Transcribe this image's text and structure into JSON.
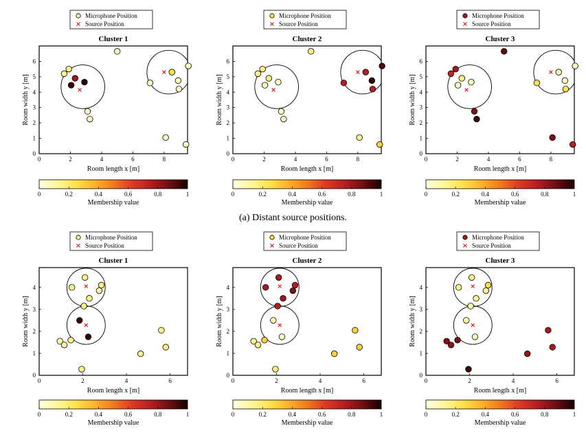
{
  "caption": "(a) Distant source positions.",
  "colors": {
    "source_marker": "#d62020",
    "frame": "#000000",
    "circle": "#000000"
  },
  "colormap": [
    "#ffffe0",
    "#fff79a",
    "#ffe24a",
    "#fdb22b",
    "#f07a1e",
    "#df3a23",
    "#b51e22",
    "#6e0f12",
    "#1a0000"
  ],
  "legend": {
    "microphone": "Microphone Position",
    "source": "Source Position"
  },
  "colorbar": {
    "label": "Membership value",
    "ticks": [
      "0",
      "0.2",
      "0.4",
      "0.6",
      "0.8",
      "1"
    ]
  },
  "chart_data": [
    {
      "type": "scatter",
      "title": "Cluster 1",
      "xlabel": "Room length x [m]",
      "ylabel": "Room width y [m]",
      "xlim": [
        0,
        9.5
      ],
      "ylim": [
        0,
        7
      ],
      "xticks": [
        "0",
        "2",
        "4",
        "6",
        "8"
      ],
      "yticks": [
        "0",
        "1",
        "2",
        "3",
        "4",
        "5",
        "6"
      ],
      "legend_mic_color": "#fff5a0",
      "sources": [
        {
          "x": 2.6,
          "y": 4.15
        },
        {
          "x": 8.0,
          "y": 5.3
        }
      ],
      "circles": [
        {
          "x": 2.8,
          "y": 4.35,
          "r": 1.4
        },
        {
          "x": 8.3,
          "y": 5.3,
          "r": 1.4
        }
      ],
      "mics": [
        {
          "x": 1.6,
          "y": 5.2,
          "m": 0.15
        },
        {
          "x": 1.9,
          "y": 5.5,
          "m": 0.15
        },
        {
          "x": 2.3,
          "y": 4.9,
          "m": 0.8
        },
        {
          "x": 2.05,
          "y": 4.45,
          "m": 0.95
        },
        {
          "x": 2.9,
          "y": 4.65,
          "m": 0.98
        },
        {
          "x": 3.1,
          "y": 2.75,
          "m": 0.05
        },
        {
          "x": 3.25,
          "y": 2.25,
          "m": 0.05
        },
        {
          "x": 5.0,
          "y": 6.65,
          "m": 0.05
        },
        {
          "x": 7.1,
          "y": 4.6,
          "m": 0.05
        },
        {
          "x": 8.5,
          "y": 5.3,
          "m": 0.25
        },
        {
          "x": 8.9,
          "y": 4.75,
          "m": 0.05
        },
        {
          "x": 8.95,
          "y": 4.2,
          "m": 0.05
        },
        {
          "x": 9.55,
          "y": 5.7,
          "m": 0.05
        },
        {
          "x": 8.1,
          "y": 1.05,
          "m": 0.05
        },
        {
          "x": 9.4,
          "y": 0.6,
          "m": 0.05
        }
      ]
    },
    {
      "type": "scatter",
      "title": "Cluster 2",
      "xlabel": "Room length x [m]",
      "ylabel": "Room width y [m]",
      "xlim": [
        0,
        9.5
      ],
      "ylim": [
        0,
        7
      ],
      "xticks": [
        "0",
        "2",
        "4",
        "6",
        "8"
      ],
      "yticks": [
        "0",
        "1",
        "2",
        "3",
        "4",
        "5",
        "6"
      ],
      "legend_mic_color": "#fde04a",
      "sources": [
        {
          "x": 2.6,
          "y": 4.15
        },
        {
          "x": 8.0,
          "y": 5.3
        }
      ],
      "circles": [
        {
          "x": 2.8,
          "y": 4.35,
          "r": 1.4
        },
        {
          "x": 8.3,
          "y": 5.3,
          "r": 1.4
        }
      ],
      "mics": [
        {
          "x": 1.6,
          "y": 5.2,
          "m": 0.15
        },
        {
          "x": 1.9,
          "y": 5.5,
          "m": 0.15
        },
        {
          "x": 2.3,
          "y": 4.9,
          "m": 0.15
        },
        {
          "x": 2.05,
          "y": 4.45,
          "m": 0.05
        },
        {
          "x": 2.9,
          "y": 4.65,
          "m": 0.05
        },
        {
          "x": 3.1,
          "y": 2.75,
          "m": 0.05
        },
        {
          "x": 3.25,
          "y": 2.25,
          "m": 0.05
        },
        {
          "x": 5.0,
          "y": 6.65,
          "m": 0.15
        },
        {
          "x": 7.1,
          "y": 4.6,
          "m": 0.75
        },
        {
          "x": 8.5,
          "y": 5.3,
          "m": 0.75
        },
        {
          "x": 8.9,
          "y": 4.75,
          "m": 0.97
        },
        {
          "x": 8.95,
          "y": 4.2,
          "m": 0.75
        },
        {
          "x": 9.55,
          "y": 5.7,
          "m": 0.93
        },
        {
          "x": 8.1,
          "y": 1.05,
          "m": 0.15
        },
        {
          "x": 9.4,
          "y": 0.6,
          "m": 0.3
        }
      ]
    },
    {
      "type": "scatter",
      "title": "Cluster 3",
      "xlabel": "Room length x [m]",
      "ylabel": "Room width y [m]",
      "xlim": [
        0,
        9.5
      ],
      "ylim": [
        0,
        7
      ],
      "xticks": [
        "0",
        "2",
        "4",
        "6",
        "8"
      ],
      "yticks": [
        "0",
        "1",
        "2",
        "3",
        "4",
        "5",
        "6"
      ],
      "legend_mic_color": "#9c1c1c",
      "sources": [
        {
          "x": 2.6,
          "y": 4.15
        },
        {
          "x": 8.0,
          "y": 5.3
        }
      ],
      "circles": [
        {
          "x": 2.8,
          "y": 4.35,
          "r": 1.4
        },
        {
          "x": 8.3,
          "y": 5.3,
          "r": 1.4
        }
      ],
      "mics": [
        {
          "x": 1.6,
          "y": 5.2,
          "m": 0.72
        },
        {
          "x": 1.9,
          "y": 5.5,
          "m": 0.78
        },
        {
          "x": 2.3,
          "y": 4.9,
          "m": 0.15
        },
        {
          "x": 2.05,
          "y": 4.45,
          "m": 0.05
        },
        {
          "x": 2.9,
          "y": 4.65,
          "m": 0.05
        },
        {
          "x": 3.1,
          "y": 2.75,
          "m": 0.85
        },
        {
          "x": 3.25,
          "y": 2.25,
          "m": 0.95
        },
        {
          "x": 5.0,
          "y": 6.65,
          "m": 0.9
        },
        {
          "x": 7.1,
          "y": 4.6,
          "m": 0.25
        },
        {
          "x": 8.5,
          "y": 5.3,
          "m": 0.1
        },
        {
          "x": 8.9,
          "y": 4.75,
          "m": 0.05
        },
        {
          "x": 8.95,
          "y": 4.2,
          "m": 0.25
        },
        {
          "x": 9.55,
          "y": 5.7,
          "m": 0.05
        },
        {
          "x": 8.1,
          "y": 1.05,
          "m": 0.85
        },
        {
          "x": 9.4,
          "y": 0.6,
          "m": 0.75
        }
      ]
    },
    {
      "type": "scatter",
      "title": "Cluster 1",
      "xlabel": "Room length x [m]",
      "ylabel": "Room width y [m]",
      "xlim": [
        0,
        6.8
      ],
      "ylim": [
        0,
        4.9
      ],
      "xticks": [
        "0",
        "2",
        "4",
        "6"
      ],
      "yticks": [
        "0",
        "1",
        "2",
        "3",
        "4"
      ],
      "legend_mic_color": "#fff5a0",
      "sources": [
        {
          "x": 2.15,
          "y": 4.05
        },
        {
          "x": 2.15,
          "y": 2.28
        }
      ],
      "circles": [
        {
          "x": 2.15,
          "y": 4.0,
          "r": 0.88
        },
        {
          "x": 2.15,
          "y": 2.28,
          "r": 0.88
        }
      ],
      "mics": [
        {
          "x": 1.5,
          "y": 4.0,
          "m": 0.15
        },
        {
          "x": 2.1,
          "y": 4.45,
          "m": 0.15
        },
        {
          "x": 2.85,
          "y": 4.1,
          "m": 0.15
        },
        {
          "x": 2.75,
          "y": 3.85,
          "m": 0.1
        },
        {
          "x": 2.3,
          "y": 3.5,
          "m": 0.15
        },
        {
          "x": 2.05,
          "y": 3.15,
          "m": 0.15
        },
        {
          "x": 1.85,
          "y": 2.5,
          "m": 0.95
        },
        {
          "x": 2.25,
          "y": 1.75,
          "m": 0.97
        },
        {
          "x": 1.45,
          "y": 1.6,
          "m": 0.15
        },
        {
          "x": 0.95,
          "y": 1.55,
          "m": 0.1
        },
        {
          "x": 1.15,
          "y": 1.38,
          "m": 0.1
        },
        {
          "x": 1.95,
          "y": 0.28,
          "m": 0.15
        },
        {
          "x": 4.65,
          "y": 0.98,
          "m": 0.15
        },
        {
          "x": 5.6,
          "y": 2.05,
          "m": 0.15
        },
        {
          "x": 5.8,
          "y": 1.28,
          "m": 0.15
        }
      ]
    },
    {
      "type": "scatter",
      "title": "Cluster 2",
      "xlabel": "Room length x [m]",
      "ylabel": "Room width y [m]",
      "xlim": [
        0,
        6.8
      ],
      "ylim": [
        0,
        4.9
      ],
      "xticks": [
        "0",
        "2",
        "4",
        "6"
      ],
      "yticks": [
        "0",
        "1",
        "2",
        "3",
        "4"
      ],
      "legend_mic_color": "#fde04a",
      "sources": [
        {
          "x": 2.15,
          "y": 4.05
        },
        {
          "x": 2.15,
          "y": 2.28
        }
      ],
      "circles": [
        {
          "x": 2.15,
          "y": 4.0,
          "r": 0.88
        },
        {
          "x": 2.15,
          "y": 2.28,
          "r": 0.88
        }
      ],
      "mics": [
        {
          "x": 1.5,
          "y": 4.0,
          "m": 0.78
        },
        {
          "x": 2.1,
          "y": 4.45,
          "m": 0.78
        },
        {
          "x": 2.85,
          "y": 4.1,
          "m": 0.75
        },
        {
          "x": 2.75,
          "y": 3.85,
          "m": 0.85
        },
        {
          "x": 2.3,
          "y": 3.5,
          "m": 0.8
        },
        {
          "x": 2.05,
          "y": 3.15,
          "m": 0.75
        },
        {
          "x": 1.85,
          "y": 2.5,
          "m": 0.1
        },
        {
          "x": 2.25,
          "y": 1.75,
          "m": 0.05
        },
        {
          "x": 1.45,
          "y": 1.6,
          "m": 0.3
        },
        {
          "x": 0.95,
          "y": 1.55,
          "m": 0.15
        },
        {
          "x": 1.15,
          "y": 1.38,
          "m": 0.15
        },
        {
          "x": 1.95,
          "y": 0.28,
          "m": 0.15
        },
        {
          "x": 4.65,
          "y": 0.98,
          "m": 0.3
        },
        {
          "x": 5.6,
          "y": 2.05,
          "m": 0.3
        },
        {
          "x": 5.8,
          "y": 1.28,
          "m": 0.3
        }
      ]
    },
    {
      "type": "scatter",
      "title": "Cluster 3",
      "xlabel": "Room length x [m]",
      "ylabel": "Room width y [m]",
      "xlim": [
        0,
        6.8
      ],
      "ylim": [
        0,
        4.9
      ],
      "xticks": [
        "0",
        "2",
        "4",
        "6"
      ],
      "yticks": [
        "0",
        "1",
        "2",
        "3",
        "4"
      ],
      "legend_mic_color": "#9c1c1c",
      "sources": [
        {
          "x": 2.15,
          "y": 4.05
        },
        {
          "x": 2.15,
          "y": 2.28
        }
      ],
      "circles": [
        {
          "x": 2.15,
          "y": 4.0,
          "r": 0.88
        },
        {
          "x": 2.15,
          "y": 2.28,
          "r": 0.88
        }
      ],
      "mics": [
        {
          "x": 1.5,
          "y": 4.0,
          "m": 0.15
        },
        {
          "x": 2.1,
          "y": 4.45,
          "m": 0.15
        },
        {
          "x": 2.85,
          "y": 4.1,
          "m": 0.25
        },
        {
          "x": 2.75,
          "y": 3.85,
          "m": 0.15
        },
        {
          "x": 2.3,
          "y": 3.5,
          "m": 0.15
        },
        {
          "x": 2.05,
          "y": 3.15,
          "m": 0.1
        },
        {
          "x": 1.85,
          "y": 2.5,
          "m": 0.1
        },
        {
          "x": 2.25,
          "y": 1.75,
          "m": 0.05
        },
        {
          "x": 1.45,
          "y": 1.6,
          "m": 0.85
        },
        {
          "x": 0.95,
          "y": 1.55,
          "m": 0.85
        },
        {
          "x": 1.15,
          "y": 1.38,
          "m": 0.82
        },
        {
          "x": 1.95,
          "y": 0.28,
          "m": 0.95
        },
        {
          "x": 4.65,
          "y": 0.98,
          "m": 0.82
        },
        {
          "x": 5.6,
          "y": 2.05,
          "m": 0.78
        },
        {
          "x": 5.8,
          "y": 1.28,
          "m": 0.78
        }
      ]
    }
  ]
}
